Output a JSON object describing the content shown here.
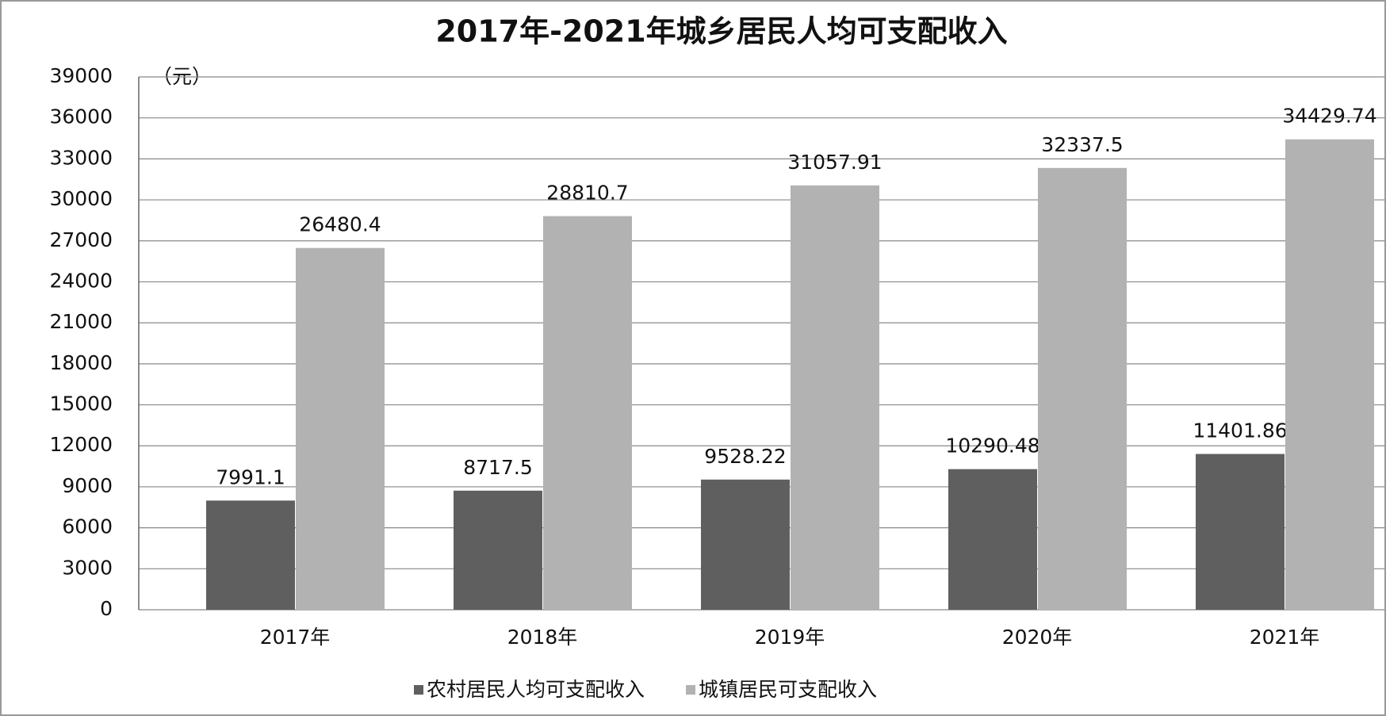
{
  "chart_data": {
    "type": "bar",
    "title": "2017年-2021年城乡居民人均可支配收入",
    "unit_label": "（元）",
    "categories": [
      "2017年",
      "2018年",
      "2019年",
      "2020年",
      "2021年"
    ],
    "series": [
      {
        "name": "农村居民人均可支配收入",
        "color": "#5f5f5f",
        "values": [
          7991.1,
          8717.5,
          9528.22,
          10290.48,
          11401.86
        ]
      },
      {
        "name": "城镇居民可支配收入",
        "color": "#b2b2b2",
        "values": [
          26480.4,
          28810.7,
          31057.91,
          32337.5,
          34429.74
        ]
      }
    ],
    "ylim": [
      0,
      39000
    ],
    "yticks": [
      0,
      3000,
      6000,
      9000,
      12000,
      15000,
      18000,
      21000,
      24000,
      27000,
      30000,
      33000,
      36000,
      39000
    ],
    "grid": true,
    "legend": "bottom"
  }
}
